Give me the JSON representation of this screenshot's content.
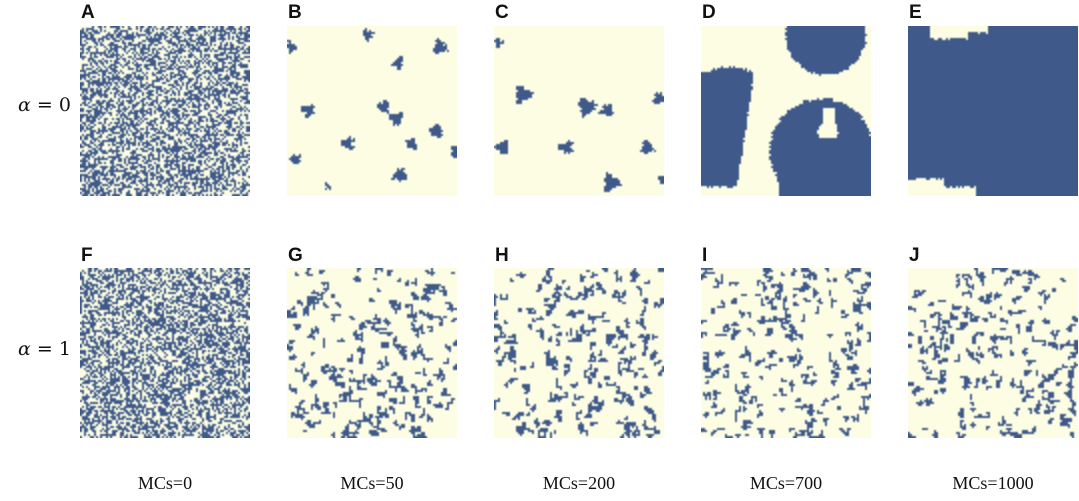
{
  "rows": [
    {
      "alpha_symbol": "α",
      "alpha_rest": " = 0",
      "panels": [
        "A",
        "B",
        "C",
        "D",
        "E"
      ]
    },
    {
      "alpha_symbol": "α",
      "alpha_rest": " = 1",
      "panels": [
        "F",
        "G",
        "H",
        "I",
        "J"
      ]
    }
  ],
  "columns": [
    "MCs=0",
    "MCs=50",
    "MCs=200",
    "MCs=700",
    "MCs=1000"
  ],
  "colors": {
    "occupied": "#3f5a8a",
    "empty": "#fdfde3"
  }
}
